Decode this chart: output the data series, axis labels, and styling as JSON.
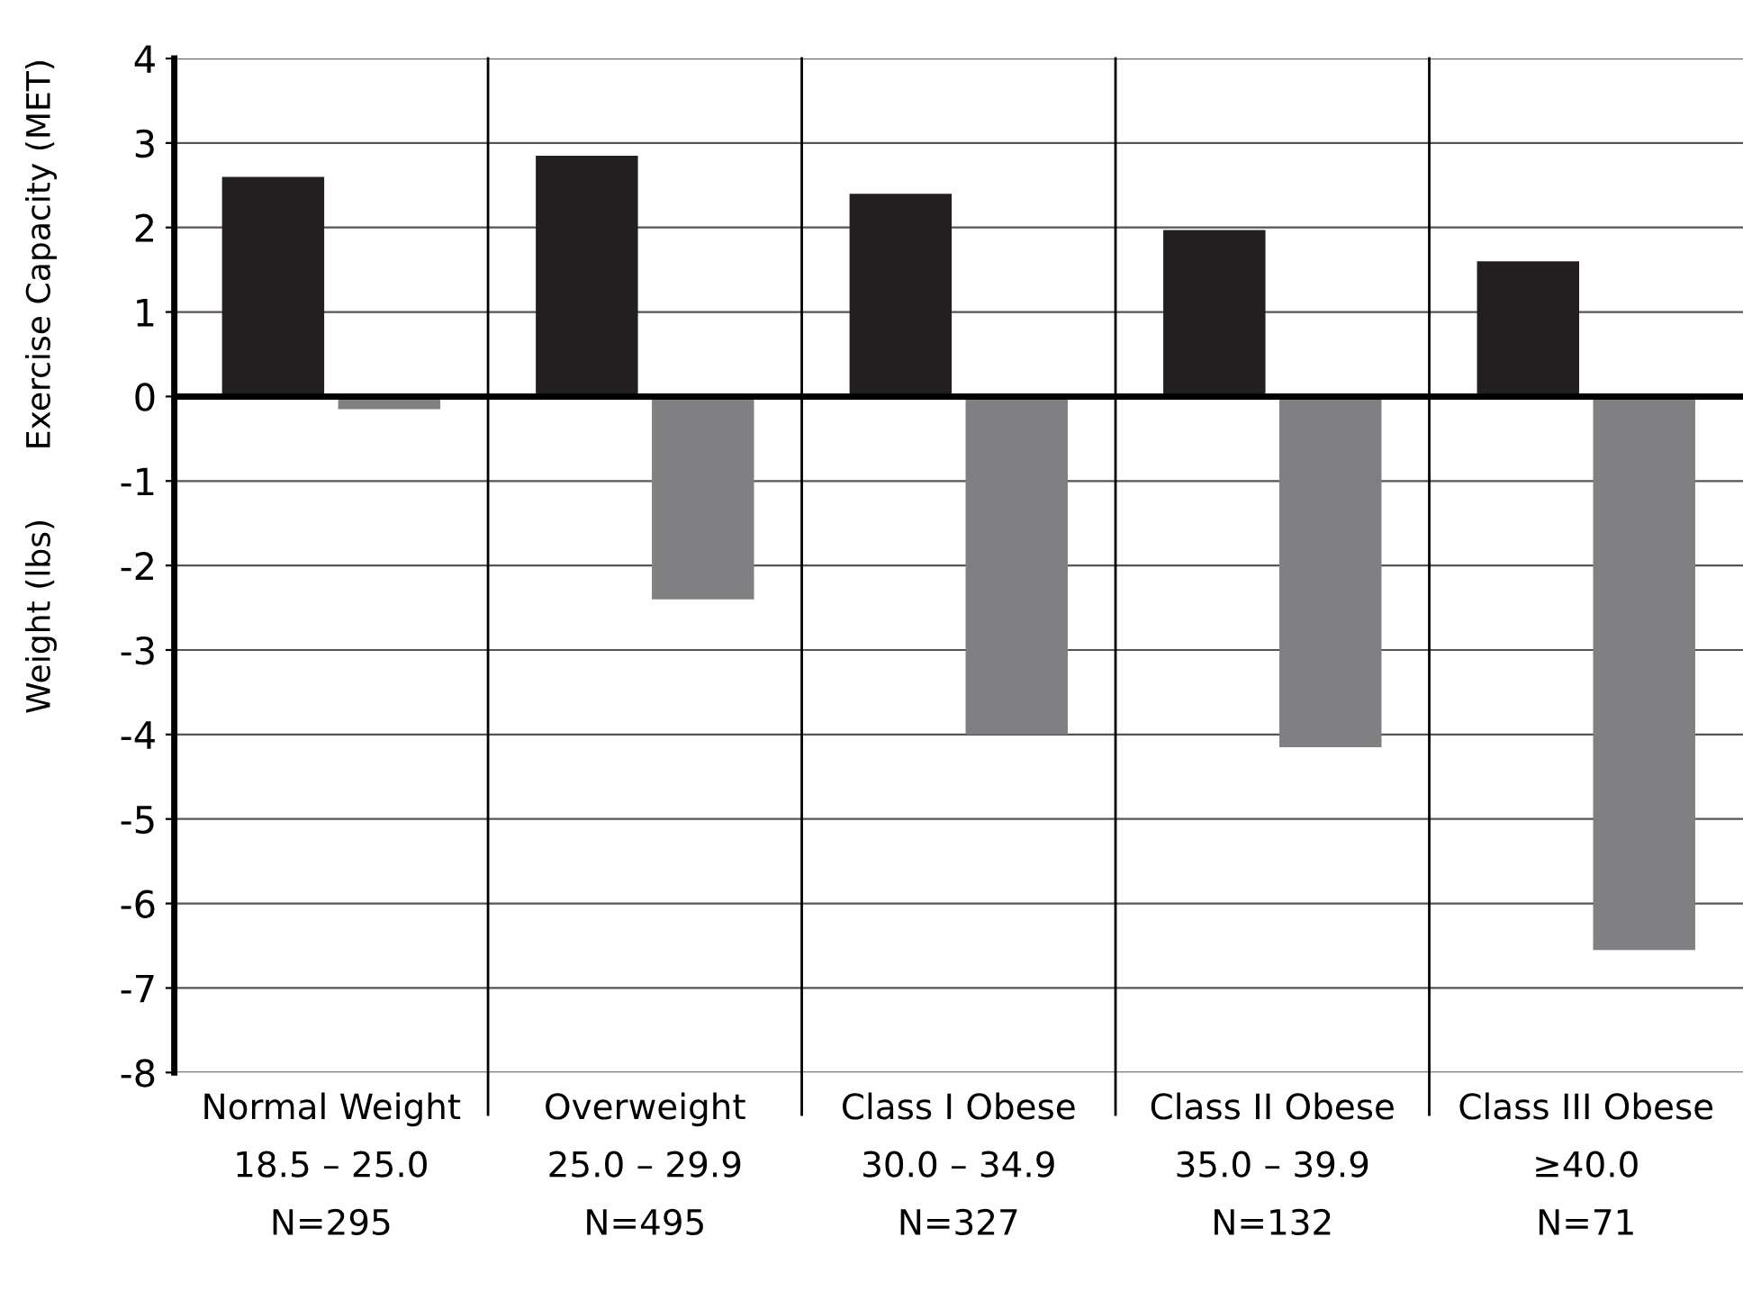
{
  "chart_data": {
    "type": "bar",
    "categories": [
      "Normal Weight\n18.5 – 25.0\nN=295",
      "Overweight\n25.0 – 29.9\nN=495",
      "Class I Obese\n30.0 – 34.9\nN=327",
      "Class II Obese\n35.0 – 39.9\nN=132",
      "Class III Obese\n≥40.0\nN=71"
    ],
    "series": [
      {
        "color": "#231f20",
        "values": [
          2.6,
          2.85,
          2.4,
          1.97,
          1.6
        ]
      },
      {
        "color": "#808083",
        "values": [
          -0.15,
          -2.4,
          -4.0,
          -4.15,
          -6.55
        ]
      }
    ],
    "ylabel": "Exercise Capacity (MET)",
    "annotations": [
      "Weight (lbs)"
    ],
    "ylim": [
      -8,
      4
    ],
    "yticks": [
      -8,
      -7,
      -6,
      -5,
      -4,
      -3,
      -2,
      -1,
      0,
      1,
      2,
      3,
      4
    ],
    "grid": "y",
    "legend": false
  }
}
